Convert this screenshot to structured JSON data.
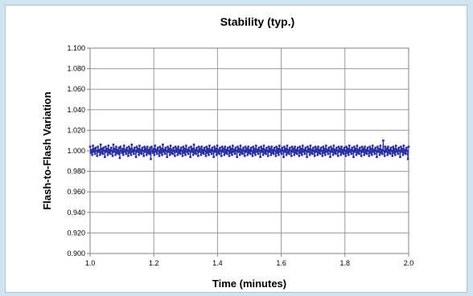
{
  "chart_data": {
    "type": "line",
    "title": "Stability (typ.)",
    "xlabel": "Time (minutes)",
    "ylabel": "Flash-to-Flash Variation",
    "xlim": [
      1.0,
      2.0
    ],
    "ylim": [
      0.9,
      1.1
    ],
    "x_ticks": [
      "1.0",
      "1.2",
      "1.4",
      "1.6",
      "1.8",
      "2.0"
    ],
    "y_ticks": [
      "0.900",
      "0.920",
      "0.940",
      "0.960",
      "0.980",
      "1.000",
      "1.020",
      "1.040",
      "1.060",
      "1.080",
      "1.100"
    ],
    "grid": true,
    "legend": "none",
    "series": [
      {
        "color": "#2b2fa0",
        "marker": "square",
        "x_start": 1.0,
        "x_end": 2.0,
        "values": [
          1.004,
          0.998,
          1.001,
          0.996,
          1.005,
          0.999,
          1.002,
          0.997,
          1.003,
          1.0,
          0.995,
          1.004,
          0.999,
          1.001,
          0.996,
          1.006,
          0.998,
          1.002,
          0.997,
          1.003,
          1.0,
          0.994,
          1.004,
          0.999,
          1.002,
          0.996,
          1.005,
          0.998,
          1.001,
          0.997,
          1.003,
          1.0,
          0.995,
          1.006,
          0.999,
          1.002,
          0.996,
          1.004,
          0.998,
          1.001,
          0.997,
          1.003,
          0.993,
          1.004,
          1.0,
          0.998,
          1.002,
          0.996,
          1.005,
          0.999,
          1.001,
          0.997,
          1.003,
          1.0,
          0.995,
          1.004,
          0.998,
          1.002,
          0.996,
          1.006,
          0.999,
          1.001,
          0.997,
          1.003,
          1.0,
          0.994,
          1.004,
          0.999,
          1.002,
          0.996,
          1.005,
          0.998,
          1.001,
          0.997,
          1.003,
          1.0,
          0.995,
          1.004,
          0.999,
          1.002,
          0.996,
          1.004,
          0.998,
          1.001,
          0.997,
          1.003,
          0.992,
          1.004,
          1.0,
          0.998,
          1.002,
          0.996,
          1.005,
          0.999,
          1.001,
          0.997,
          1.003,
          1.0,
          0.995,
          1.004,
          0.998,
          1.002,
          0.996,
          1.006,
          0.999,
          1.001,
          0.997,
          1.003,
          1.0,
          0.994,
          1.004,
          0.999,
          1.002,
          0.996,
          1.005,
          0.998,
          1.001,
          0.997,
          1.003,
          1.0,
          0.995,
          1.004,
          0.999,
          1.002,
          0.996,
          1.004,
          0.998,
          1.001,
          0.997,
          1.003,
          1.0,
          0.995,
          1.004,
          0.998,
          1.002,
          0.996,
          1.005,
          0.999,
          1.001,
          0.997,
          1.003,
          1.0,
          0.994,
          1.004,
          0.999,
          1.002,
          0.996,
          1.006,
          0.998,
          1.001,
          0.997,
          1.003,
          1.0,
          0.995,
          1.004,
          0.999,
          1.002,
          0.996,
          1.004,
          0.998,
          1.001,
          0.997,
          1.003,
          1.0,
          0.995,
          1.004,
          0.998,
          1.002,
          0.996,
          1.005,
          0.999,
          1.001,
          0.997,
          1.003,
          1.0,
          0.994,
          1.004,
          0.999,
          1.002,
          0.996,
          1.005,
          0.998,
          1.001,
          0.997,
          1.003,
          1.0,
          0.995,
          1.004,
          0.999,
          1.002,
          0.996,
          1.004,
          0.998,
          1.001,
          0.997,
          1.003,
          1.0,
          0.995,
          1.004,
          0.998,
          1.002,
          0.996,
          1.005,
          0.999,
          1.001,
          0.997,
          1.003,
          1.0,
          0.994,
          1.004,
          0.999,
          1.002,
          0.996,
          1.005,
          0.998,
          1.001,
          0.997,
          1.003,
          1.0,
          0.995,
          1.004,
          0.999,
          1.002,
          0.996,
          1.004,
          0.998,
          1.001,
          0.997,
          1.003,
          1.0,
          0.995,
          1.004,
          0.998,
          1.002,
          0.996,
          1.005,
          0.999,
          1.001,
          0.997,
          1.003,
          1.0,
          0.994,
          1.004,
          0.999,
          1.002,
          0.996,
          1.005,
          0.998,
          1.001,
          0.997,
          1.003,
          1.0,
          0.995,
          1.004,
          0.999,
          1.002,
          0.996,
          1.004,
          0.998,
          1.001,
          0.997,
          1.003,
          1.0,
          0.995,
          1.004,
          0.998,
          1.002,
          0.996,
          1.005,
          0.999,
          1.001,
          0.997,
          1.003,
          1.0,
          0.994,
          1.004,
          0.999,
          1.002,
          0.996,
          1.005,
          0.998,
          1.001,
          0.997,
          1.003,
          1.0,
          0.995,
          1.004,
          0.999,
          1.002,
          0.996,
          1.004,
          0.998,
          1.001,
          0.997,
          1.003,
          1.0,
          0.995,
          1.004,
          0.998,
          1.002,
          0.996,
          1.005,
          0.999,
          1.001,
          0.997,
          1.003,
          1.0,
          0.994,
          1.004,
          0.999,
          1.002,
          0.996,
          1.005,
          0.998,
          1.001,
          0.997,
          1.003,
          1.0,
          0.995,
          1.004,
          0.999,
          1.002,
          0.996,
          1.004,
          0.998,
          1.001,
          0.997,
          1.003,
          1.0,
          0.995,
          1.004,
          0.998,
          1.002,
          0.996,
          1.005,
          0.999,
          1.001,
          0.997,
          1.003,
          1.0,
          0.994,
          1.004,
          0.999,
          1.002,
          0.996,
          1.005,
          0.998,
          1.001,
          0.997,
          1.003,
          1.0,
          0.995,
          1.004,
          0.999,
          1.002,
          0.996,
          1.004,
          0.998,
          1.001,
          0.997,
          1.003,
          1.0,
          0.995,
          1.004,
          0.998,
          1.002,
          0.996,
          1.005,
          0.999,
          1.001,
          0.997,
          1.003,
          1.0,
          0.994,
          1.004,
          0.999,
          1.002,
          0.996,
          1.005,
          0.998,
          1.001,
          0.997,
          1.003,
          1.0,
          0.995,
          1.004,
          0.999,
          1.002,
          0.996,
          1.004,
          0.998,
          1.001,
          0.997,
          1.003,
          1.0,
          0.995,
          1.004,
          0.998,
          1.002,
          0.996,
          1.005,
          0.999,
          1.001,
          0.997,
          1.003,
          1.0,
          0.994,
          1.004,
          0.999,
          1.002,
          0.996,
          1.005,
          0.998,
          1.001,
          0.997,
          1.01,
          1.0,
          0.995,
          1.004,
          0.999,
          1.002,
          0.996,
          1.004,
          0.998,
          1.001,
          0.997,
          1.003,
          1.0,
          0.995,
          1.004,
          0.998,
          1.002,
          0.996,
          1.005,
          0.999,
          1.001,
          0.997,
          1.003,
          1.0,
          0.994,
          1.004,
          0.999,
          1.002,
          0.996,
          1.005,
          0.998,
          1.001,
          0.997,
          1.003,
          1.0,
          0.992,
          1.004
        ]
      }
    ]
  }
}
